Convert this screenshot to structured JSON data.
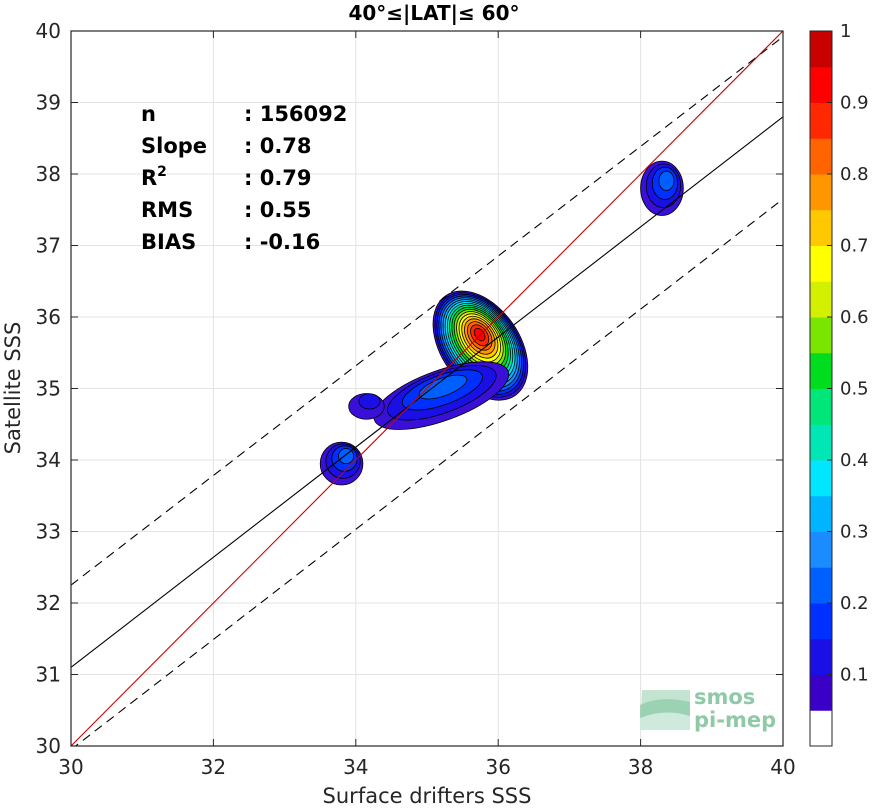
{
  "chart_data": {
    "type": "contour",
    "title": "40°≤|LAT|≤ 60°",
    "xlabel": "Surface drifters SSS",
    "ylabel": "Satellite SSS",
    "xlim": [
      30,
      40
    ],
    "ylim": [
      30,
      40
    ],
    "xticks": [
      "30",
      "32",
      "34",
      "36",
      "38",
      "40"
    ],
    "yticks": [
      "30",
      "31",
      "32",
      "33",
      "34",
      "35",
      "36",
      "37",
      "38",
      "39",
      "40"
    ],
    "grid": true,
    "stats": [
      {
        "label": "n",
        "value": ": 156092"
      },
      {
        "label": "Slope",
        "value": ": 0.78"
      },
      {
        "label": "R",
        "sup": "2",
        "value": ": 0.79"
      },
      {
        "label": "RMS",
        "value": ": 0.55"
      },
      {
        "label": "BIAS",
        "value": ": -0.16"
      }
    ],
    "lines": {
      "identity": {
        "color": "#cc0000",
        "x": [
          30,
          40
        ],
        "y": [
          30,
          40
        ]
      },
      "fit": {
        "color": "#000000",
        "x": [
          30,
          40
        ],
        "y": [
          31.1,
          38.8
        ]
      },
      "upper_bound": {
        "color": "#000000",
        "dash": true,
        "x": [
          30,
          40
        ],
        "y": [
          32.25,
          39.92
        ]
      },
      "lower_bound": {
        "color": "#000000",
        "dash": true,
        "x": [
          30,
          40
        ],
        "y": [
          29.95,
          37.65
        ]
      }
    },
    "density_blobs": [
      {
        "cx": 35.75,
        "cy": 35.6,
        "rx": 0.55,
        "ry": 0.85,
        "rot": -35,
        "peak": 0.9
      },
      {
        "cx": 35.2,
        "cy": 34.9,
        "rx": 1.0,
        "ry": 0.35,
        "rot": -20,
        "peak": 0.18
      },
      {
        "cx": 34.15,
        "cy": 34.75,
        "rx": 0.25,
        "ry": 0.18,
        "rot": 0,
        "peak": 0.1
      },
      {
        "cx": 33.8,
        "cy": 33.95,
        "rx": 0.3,
        "ry": 0.3,
        "rot": 0,
        "peak": 0.18
      },
      {
        "cx": 38.3,
        "cy": 37.8,
        "rx": 0.3,
        "ry": 0.38,
        "rot": 0,
        "peak": 0.18
      }
    ],
    "colorbar": {
      "ticks": [
        "0.1",
        "0.2",
        "0.3",
        "0.4",
        "0.5",
        "0.6",
        "0.7",
        "0.8",
        "0.9",
        "1"
      ],
      "range": [
        0,
        1
      ],
      "levels": 20,
      "colors": [
        "#ffffff",
        "#5c00a8",
        "#3a00c8",
        "#1a10e6",
        "#0030ff",
        "#0060ff",
        "#1a8cff",
        "#00b4ff",
        "#00e6ff",
        "#00e6b4",
        "#00e678",
        "#00dc1e",
        "#7ae600",
        "#d2f000",
        "#ffff00",
        "#ffc800",
        "#ff9600",
        "#ff6400",
        "#ff2800",
        "#ff0000",
        "#c80000",
        "#8b0000"
      ]
    }
  },
  "logo": {
    "line1": "smos",
    "line2": "pi-mep"
  }
}
